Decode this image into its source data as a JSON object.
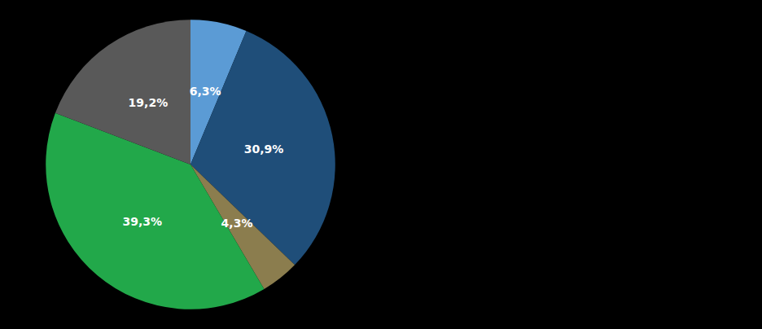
{
  "chart_data": {
    "type": "pie",
    "values": [
      6.3,
      30.9,
      4.3,
      39.3,
      19.2
    ],
    "value_labels": [
      "6,3%",
      "30,9%",
      "4,3%",
      "39,3%",
      "19,2%"
    ],
    "colors": [
      "#5B9BD5",
      "#1F4E79",
      "#8B7D4E",
      "#22A84A",
      "#595959"
    ],
    "data_labels": true
  }
}
